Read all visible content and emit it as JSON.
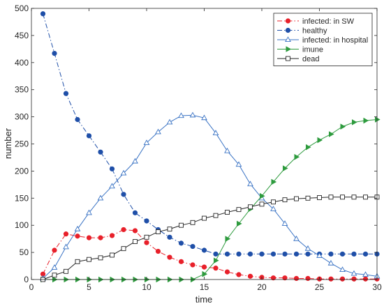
{
  "chart_data": {
    "type": "line",
    "title": "",
    "xlabel": "time",
    "ylabel": "number",
    "xlim": [
      0,
      30
    ],
    "ylim": [
      0,
      500
    ],
    "xticks": [
      0,
      5,
      10,
      15,
      20,
      25,
      30
    ],
    "yticks": [
      0,
      50,
      100,
      150,
      200,
      250,
      300,
      350,
      400,
      450,
      500
    ],
    "grid": false,
    "legend_position": "top-right",
    "x": [
      1,
      2,
      3,
      4,
      5,
      6,
      7,
      8,
      9,
      10,
      11,
      12,
      13,
      14,
      15,
      16,
      17,
      18,
      19,
      20,
      21,
      22,
      23,
      24,
      25,
      26,
      27,
      28,
      29,
      30
    ],
    "series": [
      {
        "name": "infected: in SW",
        "color": "#e8202a",
        "line_style": "dash-dot",
        "marker": "filled-circle",
        "values": [
          10,
          54,
          84,
          80,
          77,
          77,
          81,
          92,
          90,
          68,
          52,
          41,
          33,
          27,
          23,
          21,
          14,
          9,
          6,
          4,
          3,
          3,
          2,
          2,
          1,
          1,
          1,
          1,
          1,
          1
        ]
      },
      {
        "name": "healthy",
        "color": "#1f4fa8",
        "line_style": "dash-dot",
        "marker": "filled-circle",
        "values": [
          490,
          417,
          343,
          295,
          265,
          235,
          204,
          157,
          123,
          108,
          92,
          78,
          67,
          61,
          54,
          47,
          47,
          47,
          47,
          47,
          47,
          47,
          47,
          47,
          47,
          47,
          47,
          47,
          47,
          47
        ]
      },
      {
        "name": "infected: in hospital",
        "color": "#3a73c4",
        "line_style": "solid",
        "marker": "open-triangle-up",
        "values": [
          2,
          22,
          60,
          93,
          123,
          150,
          172,
          196,
          218,
          252,
          272,
          290,
          302,
          303,
          298,
          270,
          237,
          212,
          176,
          150,
          130,
          103,
          75,
          57,
          44,
          30,
          18,
          11,
          9,
          6
        ]
      },
      {
        "name": "imune",
        "color": "#2e9b3e",
        "line_style": "solid",
        "marker": "filled-triangle-right",
        "values": [
          0,
          0,
          0,
          0,
          0,
          0,
          0,
          0,
          0,
          0,
          0,
          0,
          0,
          0,
          10,
          35,
          75,
          103,
          130,
          154,
          180,
          205,
          226,
          244,
          257,
          268,
          282,
          290,
          293,
          295
        ]
      },
      {
        "name": "dead",
        "color": "#262626",
        "line_style": "solid",
        "marker": "open-square",
        "values": [
          0,
          8,
          15,
          33,
          37,
          40,
          45,
          57,
          70,
          78,
          88,
          93,
          100,
          105,
          113,
          118,
          124,
          129,
          134,
          139,
          143,
          147,
          149,
          150,
          151,
          152,
          152,
          152,
          152,
          152
        ]
      }
    ]
  }
}
